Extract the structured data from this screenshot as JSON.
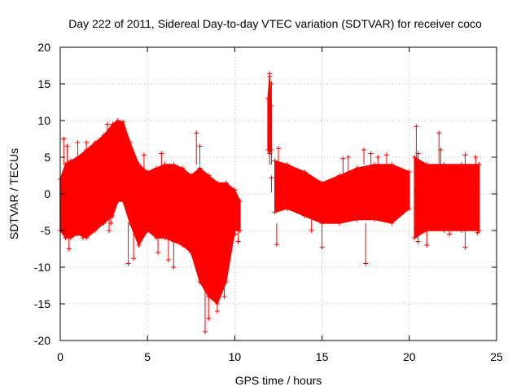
{
  "chart_data": {
    "type": "scatter",
    "title": "Day 222 of 2011, Sidereal Day-to-day VTEC variation (SDTVAR) for receiver coco",
    "xlabel": "GPS time / hours",
    "ylabel": "SDTVAR / TECUs",
    "xlim": [
      0,
      25
    ],
    "ylim": [
      -20,
      20
    ],
    "xticks": [
      "0",
      "5",
      "10",
      "15",
      "20",
      "25"
    ],
    "yticks": [
      "-20",
      "-15",
      "-10",
      "-5",
      "0",
      "5",
      "10",
      "15",
      "20"
    ],
    "grid": true,
    "marker": "+",
    "series_color": "#ff0000",
    "bands": [
      {
        "name": "segment-early",
        "x": [
          0,
          0.3,
          0.6,
          1.0,
          1.5,
          2.0,
          2.5,
          3.0,
          3.3,
          3.6,
          4.0,
          4.5,
          5.0,
          5.5,
          6.0,
          6.5,
          7.0,
          7.5,
          8.0,
          8.5,
          9.0,
          9.5,
          10.0,
          10.3
        ],
        "upper": [
          2,
          4,
          4.5,
          5,
          6,
          7,
          8,
          9.5,
          10,
          9.8,
          7,
          4,
          3,
          3.5,
          4,
          4,
          3.5,
          2.5,
          3.5,
          2.5,
          1.5,
          1.5,
          0.5,
          -1
        ],
        "lower": [
          -5,
          -6,
          -6,
          -5.5,
          -6,
          -5,
          -4,
          -3,
          -1,
          -1,
          -4,
          -7,
          -5,
          -6,
          -6,
          -6.5,
          -7,
          -8,
          -12,
          -14,
          -15,
          -12,
          -5,
          -5
        ]
      },
      {
        "name": "spike-12h",
        "x": [
          11.9,
          12.0,
          12.1
        ],
        "upper": [
          13,
          16,
          12
        ],
        "lower": [
          6,
          5.5,
          6
        ]
      },
      {
        "name": "segment-late",
        "x": [
          12.3,
          13.0,
          14.0,
          15.0,
          16.0,
          17.0,
          18.0,
          19.0,
          20.0
        ],
        "upper": [
          4.5,
          4,
          3,
          1.5,
          2.5,
          3.5,
          4,
          4,
          3
        ],
        "lower": [
          -2.5,
          -2,
          -3,
          -4,
          -4,
          -3.5,
          -3.5,
          -4,
          -2
        ]
      },
      {
        "name": "segment-end",
        "x": [
          20.3,
          21.0,
          22.0,
          23.0,
          24.0
        ],
        "upper": [
          5,
          4,
          4,
          4,
          4
        ],
        "lower": [
          -6,
          -5,
          -5,
          -5,
          -5
        ]
      }
    ],
    "outliers": [
      [
        0.2,
        7.5
      ],
      [
        0.4,
        6.5
      ],
      [
        0.5,
        -7.5
      ],
      [
        1.0,
        7
      ],
      [
        1.3,
        -6
      ],
      [
        1.5,
        7
      ],
      [
        2.7,
        9.5
      ],
      [
        2.8,
        -5
      ],
      [
        2.9,
        -4
      ],
      [
        3.6,
        5.5
      ],
      [
        4.8,
        5.3
      ],
      [
        5.8,
        5.5
      ],
      [
        5.6,
        -8
      ],
      [
        6.2,
        -9
      ],
      [
        6.5,
        -10
      ],
      [
        7.8,
        8.3
      ],
      [
        8.0,
        6.5
      ],
      [
        8.3,
        -18.8
      ],
      [
        8.5,
        -17
      ],
      [
        9.0,
        -16
      ],
      [
        9.4,
        -14
      ],
      [
        10.0,
        -5.5
      ],
      [
        10.2,
        -6.5
      ],
      [
        4.2,
        -8.8
      ],
      [
        3.9,
        -9.5
      ],
      [
        12.0,
        16.4
      ],
      [
        12.1,
        15.0
      ],
      [
        12.1,
        2.2
      ],
      [
        12.5,
        6.2
      ],
      [
        12.4,
        -6.9
      ],
      [
        14.4,
        -5.0
      ],
      [
        15.0,
        -7.3
      ],
      [
        16.5,
        5.0
      ],
      [
        17.4,
        6.0
      ],
      [
        17.5,
        -9.5
      ],
      [
        17.8,
        5.5
      ],
      [
        18.7,
        5.3
      ],
      [
        20.4,
        9.2
      ],
      [
        20.5,
        5.5
      ],
      [
        20.5,
        -6.5
      ],
      [
        21.0,
        -7.0
      ],
      [
        21.7,
        8.3
      ],
      [
        21.8,
        6.0
      ],
      [
        22.3,
        -5.5
      ],
      [
        23.2,
        5.3
      ],
      [
        23.2,
        -7.3
      ],
      [
        23.8,
        5.0
      ],
      [
        23.9,
        -5.3
      ],
      [
        18.2,
        5.0
      ],
      [
        16.2,
        4.8
      ]
    ]
  }
}
